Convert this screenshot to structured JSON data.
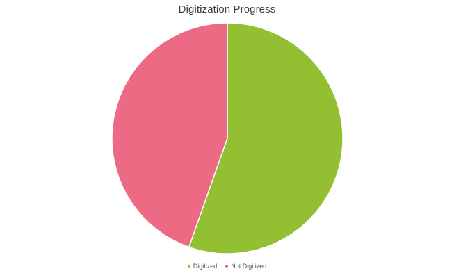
{
  "chart_data": {
    "type": "pie",
    "title": "Digitization Progress",
    "categories": [
      "Digitized",
      "Not Digitized"
    ],
    "values": [
      55.4,
      44.6
    ],
    "colors": [
      "#93c033",
      "#ec6a84"
    ],
    "legend_position": "bottom"
  }
}
